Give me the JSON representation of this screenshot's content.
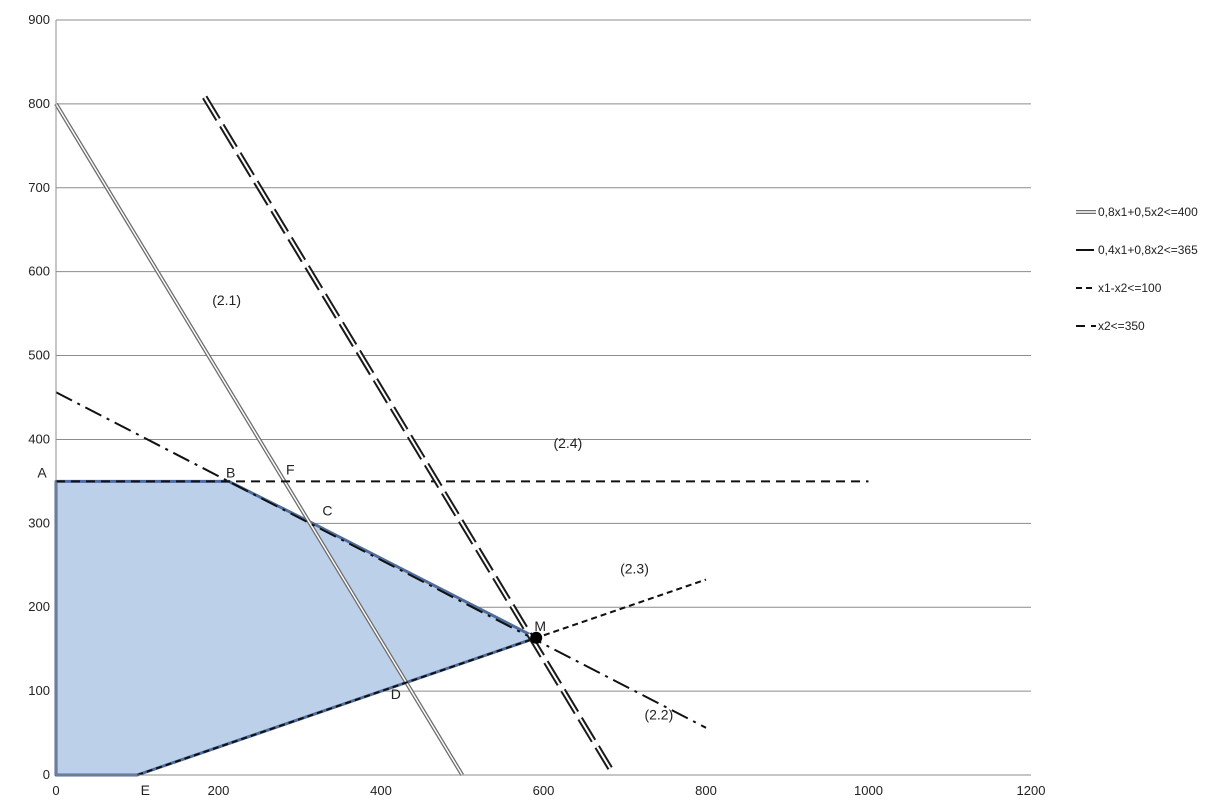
{
  "chart_data": {
    "type": "line",
    "title": "",
    "xlabel": "",
    "ylabel": "",
    "xlim": [
      0,
      1200
    ],
    "ylim": [
      0,
      900
    ],
    "x_ticks": [
      0,
      200,
      400,
      600,
      800,
      1000,
      1200
    ],
    "y_ticks": [
      0,
      100,
      200,
      300,
      400,
      500,
      600,
      700,
      800,
      900
    ],
    "grid": "horizontal",
    "legend_position": "right",
    "feasible_region": {
      "color": "#bdd0ea",
      "border_color": "#4f6d9c",
      "points": [
        [
          0,
          0
        ],
        [
          100,
          0
        ],
        [
          591.0,
          163.6
        ],
        [
          321.7,
          297.2
        ],
        [
          212.5,
          350
        ],
        [
          0,
          350
        ]
      ]
    },
    "series": [
      {
        "name": "0,8x1+0,5x2<=400",
        "style": "double-solid",
        "x": [
          0,
          500
        ],
        "y": [
          800,
          0
        ]
      },
      {
        "name": "0,4x1+0,8x2<=365",
        "style": "dash-dot",
        "x": [
          0,
          800
        ],
        "y": [
          456.25,
          56.25
        ]
      },
      {
        "name": "x1-x2<=100",
        "style": "short-dash",
        "x": [
          100,
          800
        ],
        "y": [
          0,
          233
        ]
      },
      {
        "name": "x2<=350",
        "style": "long-dash",
        "x": [
          0,
          1000
        ],
        "y": [
          350,
          350
        ]
      },
      {
        "name": "",
        "style": "double-dash",
        "x": [
          183,
          682
        ],
        "y": [
          808,
          8
        ]
      }
    ],
    "legend": [
      {
        "label": "0,8x1+0,5x2<=400",
        "style": "double-solid"
      },
      {
        "label": "0,4x1+0,8x2<=365",
        "style": "dash-dot"
      },
      {
        "label": "x1-x2<=100",
        "style": "short-dash"
      },
      {
        "label": "x2<=350",
        "style": "long-dash"
      }
    ],
    "annotations": [
      {
        "text": "A",
        "x": 0,
        "y": 350
      },
      {
        "text": "B",
        "x": 212.5,
        "y": 350
      },
      {
        "text": "F",
        "x": 281,
        "y": 350
      },
      {
        "text": "C",
        "x": 321.7,
        "y": 297.2
      },
      {
        "text": "D",
        "x": 433,
        "y": 107
      },
      {
        "text": "E",
        "x": 100,
        "y": 0
      },
      {
        "text": "M",
        "x": 591,
        "y": 163.6
      },
      {
        "text": "(2.1)",
        "x": 210,
        "y": 560
      },
      {
        "text": "(2.2)",
        "x": 742,
        "y": 66
      },
      {
        "text": "(2.3)",
        "x": 712,
        "y": 240
      },
      {
        "text": "(2.4)",
        "x": 630,
        "y": 390
      }
    ],
    "optimal_point": {
      "label": "M",
      "x": 591,
      "y": 163.6
    }
  }
}
